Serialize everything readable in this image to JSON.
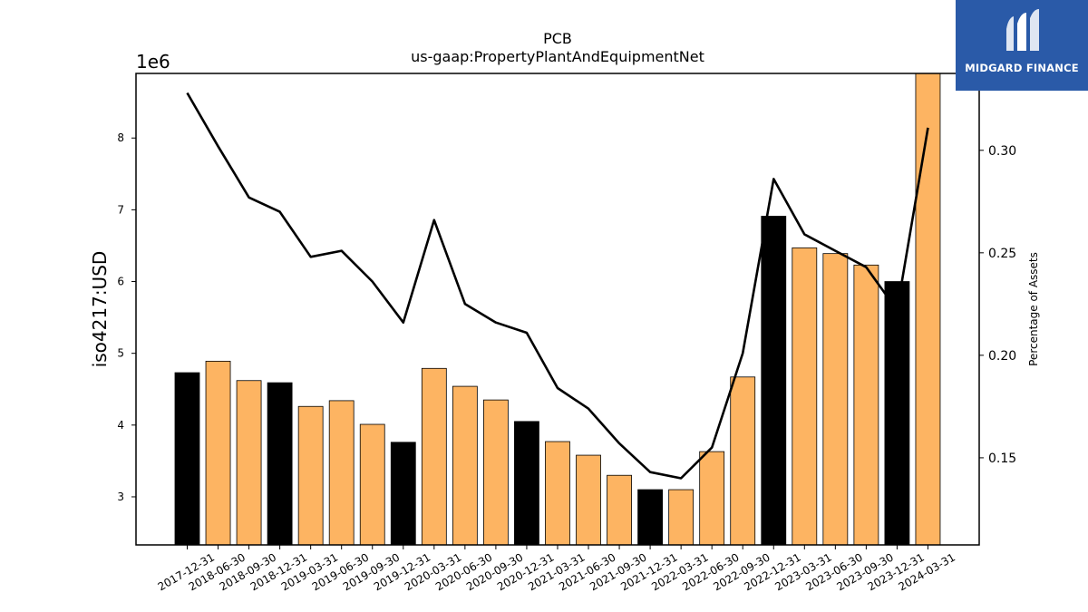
{
  "brand": {
    "name": "MIDGARD FINANCE",
    "bg_color": "#2a5aa8",
    "icon": "midgard-logo-icon"
  },
  "chart_data": {
    "type": "bar",
    "title": "PCB",
    "subtitle": "us-gaap:PropertyPlantAndEquipmentNet",
    "ylabel": "iso4217:USD",
    "y2label": "Percentage of Assets",
    "y_scale_label": "1e6",
    "ylim": [
      2330000,
      8900000
    ],
    "y2lim": [
      0.1075,
      0.3375
    ],
    "yticks": [
      3,
      4,
      5,
      6,
      7,
      8
    ],
    "y2ticks": [
      "0.15",
      "0.20",
      "0.25",
      "0.30"
    ],
    "categories": [
      "2017-12-31",
      "2018-06-30",
      "2018-09-30",
      "2018-12-31",
      "2019-03-31",
      "2019-06-30",
      "2019-09-30",
      "2019-12-31",
      "2020-03-31",
      "2020-06-30",
      "2020-09-30",
      "2020-12-31",
      "2021-03-31",
      "2021-06-30",
      "2021-09-30",
      "2021-12-31",
      "2022-03-31",
      "2022-06-30",
      "2022-09-30",
      "2022-12-31",
      "2023-03-31",
      "2023-06-30",
      "2023-09-30",
      "2023-12-31",
      "2024-03-31"
    ],
    "values": [
      4730000,
      4890000,
      4620000,
      4590000,
      4260000,
      4340000,
      4010000,
      3760000,
      4790000,
      4540000,
      4350000,
      4050000,
      3770000,
      3580000,
      3300000,
      3100000,
      3100000,
      3630000,
      4670000,
      6910000,
      6470000,
      6390000,
      6230000,
      6000000,
      8900000
    ],
    "bar_colors": [
      "#000000",
      "#fdb462",
      "#fdb462",
      "#000000",
      "#fdb462",
      "#fdb462",
      "#fdb462",
      "#000000",
      "#fdb462",
      "#fdb462",
      "#fdb462",
      "#000000",
      "#fdb462",
      "#fdb462",
      "#fdb462",
      "#000000",
      "#fdb462",
      "#fdb462",
      "#fdb462",
      "#000000",
      "#fdb462",
      "#fdb462",
      "#fdb462",
      "#000000",
      "#fdb462"
    ],
    "line": {
      "axis": "y2",
      "color": "#000000",
      "values": [
        0.328,
        0.302,
        0.277,
        0.27,
        0.248,
        0.251,
        0.236,
        0.216,
        0.266,
        0.225,
        0.216,
        0.211,
        0.184,
        0.174,
        0.157,
        0.143,
        0.14,
        0.155,
        0.201,
        0.286,
        0.259,
        0.251,
        0.243,
        0.222,
        0.311
      ]
    },
    "legend": "none",
    "grid": false
  }
}
